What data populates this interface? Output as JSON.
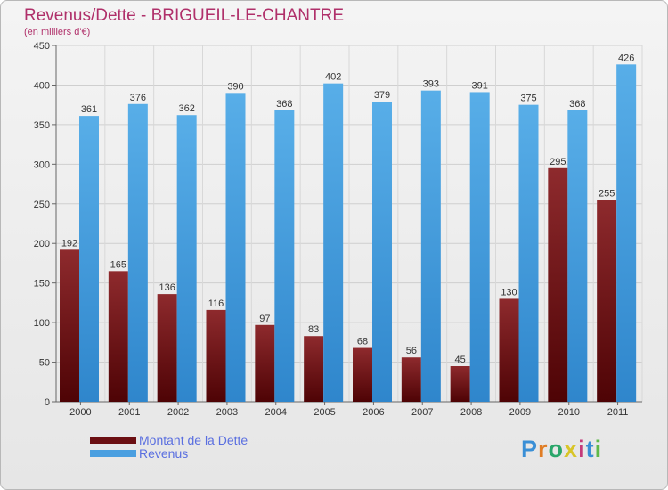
{
  "header": {
    "title": "Revenus/Dette - BRIGUEIL-LE-CHANTRE",
    "subtitle": "(en milliers d'€)"
  },
  "colors": {
    "dette": "#6b0f12",
    "revenus": "#4a9fe0",
    "title": "#b0306a",
    "legend_text": "#5a6fe0"
  },
  "legend": [
    {
      "label": "Montant de la Dette",
      "color": "#6b0f12"
    },
    {
      "label": "Revenus",
      "color": "#4a9fe0"
    }
  ],
  "logo": {
    "text": "Proxiti"
  },
  "chart_data": {
    "type": "bar",
    "categories": [
      "2000",
      "2001",
      "2002",
      "2003",
      "2004",
      "2005",
      "2006",
      "2007",
      "2008",
      "2009",
      "2010",
      "2011"
    ],
    "series": [
      {
        "name": "Montant de la Dette",
        "values": [
          192,
          165,
          136,
          116,
          97,
          83,
          68,
          56,
          45,
          130,
          295,
          255
        ]
      },
      {
        "name": "Revenus",
        "values": [
          361,
          376,
          362,
          390,
          368,
          402,
          379,
          393,
          391,
          375,
          368,
          426
        ]
      }
    ],
    "ylim": [
      0,
      450
    ],
    "yticks": [
      0,
      50,
      100,
      150,
      200,
      250,
      300,
      350,
      400,
      450
    ],
    "grid": true,
    "legend_position": "bottom-left"
  }
}
